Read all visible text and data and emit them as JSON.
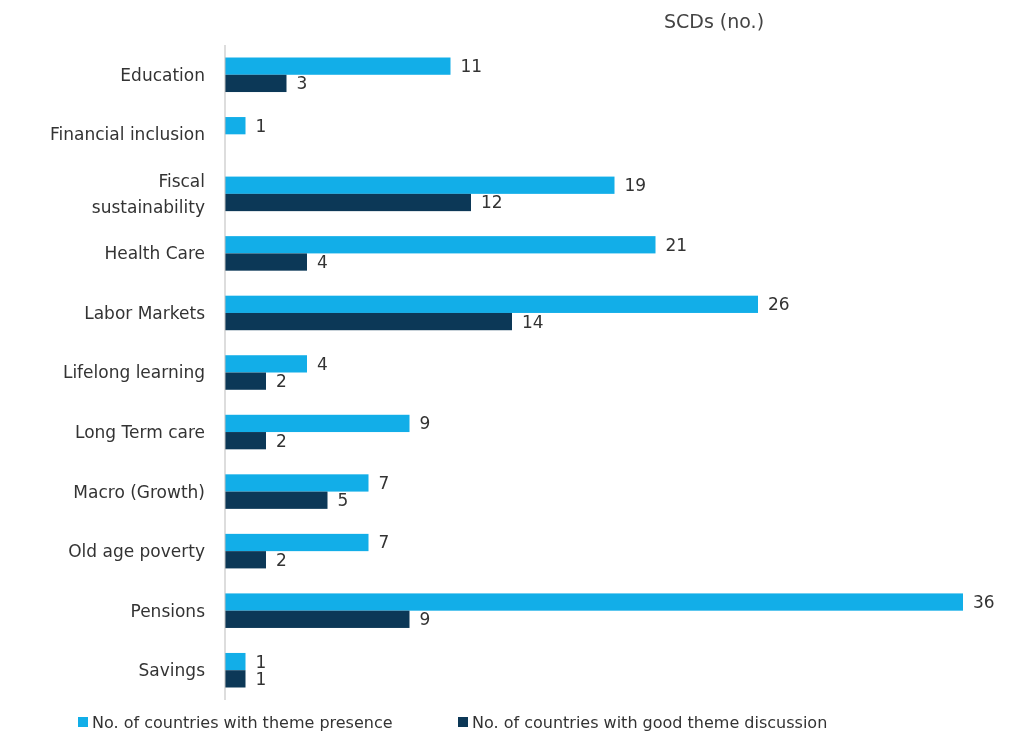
{
  "chart_data": {
    "type": "bar",
    "orientation": "horizontal",
    "title": "SCDs (no.)",
    "categories": [
      "Education",
      "Financial inclusion",
      "Fiscal sustainability",
      "Health Care",
      "Labor Markets",
      "Lifelong learning",
      "Long Term care",
      "Macro (Growth)",
      "Old age poverty",
      "Pensions",
      "Savings"
    ],
    "series": [
      {
        "name": "No. of countries with theme presence",
        "color": "#12aee8",
        "values": [
          11,
          1,
          19,
          21,
          26,
          4,
          9,
          7,
          7,
          36,
          1
        ]
      },
      {
        "name": "No. of countries with good theme discussion",
        "color": "#0c3857",
        "values": [
          3,
          null,
          12,
          4,
          14,
          2,
          2,
          5,
          2,
          9,
          1
        ]
      }
    ],
    "data_labels": true,
    "legend": "bottom"
  }
}
